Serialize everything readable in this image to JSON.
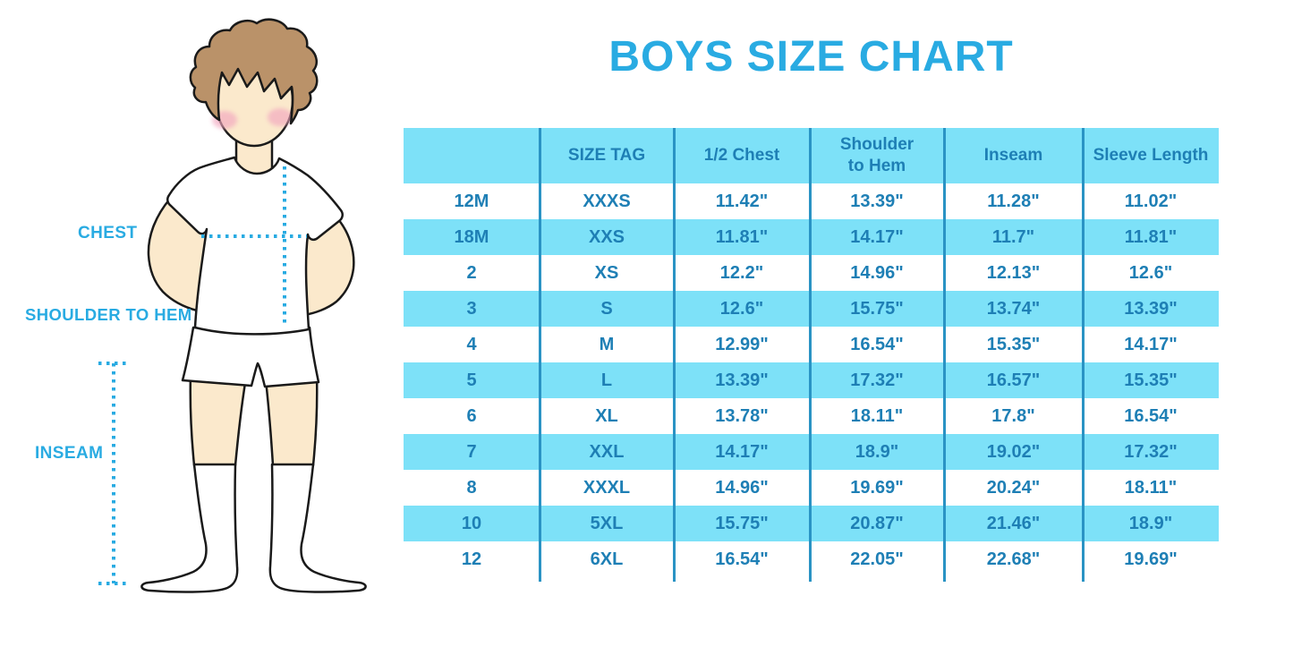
{
  "title": "BOYS SIZE CHART",
  "figure": {
    "description": "outline illustration of a boy in white t-shirt, shorts and knee socks with dotted measurement guides",
    "labels": {
      "chest": "CHEST",
      "shoulder_to_hem": "SHOULDER TO HEM",
      "inseam": "INSEAM"
    }
  },
  "chart_data": {
    "type": "table",
    "title": "BOYS SIZE CHART",
    "columns": [
      "",
      "SIZE TAG",
      "1/2 Chest",
      "Shoulder to Hem",
      "Inseam",
      "Sleeve Length"
    ],
    "rows": [
      [
        "12M",
        "XXXS",
        "11.42\"",
        "13.39\"",
        "11.28\"",
        "11.02\""
      ],
      [
        "18M",
        "XXS",
        "11.81\"",
        "14.17\"",
        "11.7\"",
        "11.81\""
      ],
      [
        "2",
        "XS",
        "12.2\"",
        "14.96\"",
        "12.13\"",
        "12.6\""
      ],
      [
        "3",
        "S",
        "12.6\"",
        "15.75\"",
        "13.74\"",
        "13.39\""
      ],
      [
        "4",
        "M",
        "12.99\"",
        "16.54\"",
        "15.35\"",
        "14.17\""
      ],
      [
        "5",
        "L",
        "13.39\"",
        "17.32\"",
        "16.57\"",
        "15.35\""
      ],
      [
        "6",
        "XL",
        "13.78\"",
        "18.11\"",
        "17.8\"",
        "16.54\""
      ],
      [
        "7",
        "XXL",
        "14.17\"",
        "18.9\"",
        "19.02\"",
        "17.32\""
      ],
      [
        "8",
        "XXXL",
        "14.96\"",
        "19.69\"",
        "20.24\"",
        "18.11\""
      ],
      [
        "10",
        "5XL",
        "15.75\"",
        "20.87\"",
        "21.46\"",
        "18.9\""
      ],
      [
        "12",
        "6XL",
        "16.54\"",
        "22.05\"",
        "22.68\"",
        "19.69\""
      ]
    ],
    "layout": {
      "striped": true,
      "stripe_pattern": "header and every second data row highlighted cyan",
      "grid": "vertical column dividers only, no outer border"
    }
  },
  "colors": {
    "accent_cyan": "#29ABE2",
    "row_cyan": "#7DE1F8",
    "table_text_blue": "#1E7FB5",
    "divider_blue": "#2A93C4",
    "skin": "#FBE9CC",
    "hair": "#BA9269",
    "blush": "#F2A6BF",
    "outline": "#1A1A1A"
  }
}
